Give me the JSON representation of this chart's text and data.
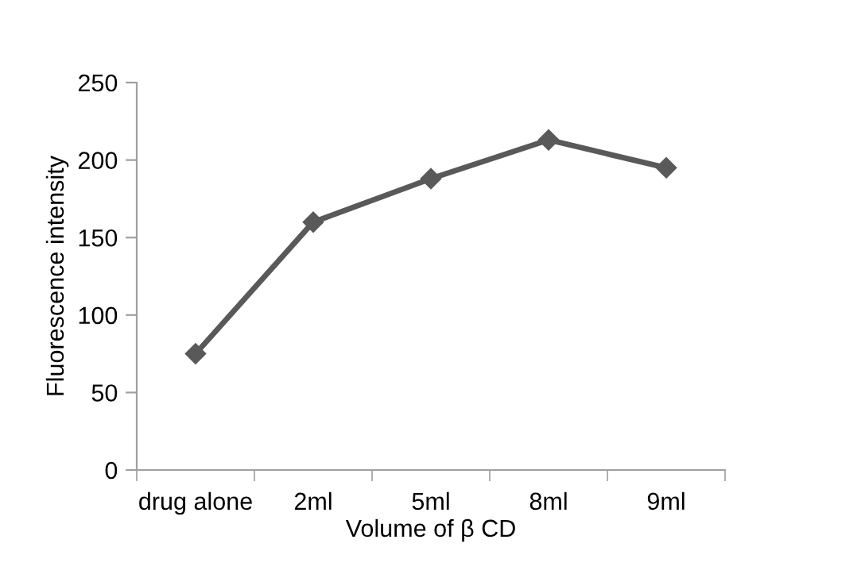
{
  "chart_data": {
    "type": "line",
    "categories": [
      "drug alone",
      "2ml",
      "5ml",
      "8ml",
      "9ml"
    ],
    "series": [
      {
        "color": "#595959",
        "values": [
          75,
          160,
          188,
          213,
          195
        ]
      }
    ],
    "xlabel": "Volume of β CD",
    "ylabel": "Fluorescence intensity",
    "ylim": [
      0,
      250
    ],
    "yticks": [
      0,
      50,
      100,
      150,
      200,
      250
    ],
    "grid": false,
    "legend": false,
    "marker": "diamond",
    "line_style": "solid"
  }
}
